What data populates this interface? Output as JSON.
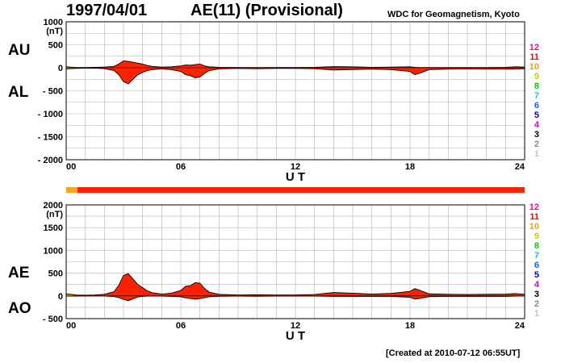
{
  "header": {
    "date": "1997/04/01",
    "title": "AE(11) (Provisional)",
    "source": "WDC for Geomagnetism, Kyoto"
  },
  "footer": {
    "created": "[Created at 2010-07-12 06:55UT]"
  },
  "colors": {
    "fill": "#ff2200",
    "fill_early": "#f5a623",
    "grid": "#b4b4b4",
    "station_count": [
      "#c0c0c0",
      "#888888",
      "#000000",
      "#cc00cc",
      "#0000cc",
      "#0066ff",
      "#00cccc",
      "#00cc00",
      "#cccc00",
      "#ff9900",
      "#ff0000",
      "#ff0099"
    ]
  },
  "station_counts": [
    "1",
    "2",
    "3",
    "4",
    "5",
    "6",
    "7",
    "8",
    "9",
    "10",
    "11",
    "12"
  ],
  "chart_data": [
    {
      "type": "area",
      "name": "AU-AL",
      "labels": {
        "upper": "AU",
        "lower": "AL"
      },
      "ylim": [
        -2000,
        1000
      ],
      "yticks": [
        "1000",
        "500",
        "0",
        "- 500",
        "- 1000",
        "- 1500",
        "- 2000"
      ],
      "yunit": "(nT)",
      "xlim": [
        0,
        24
      ],
      "xticks": [
        "00",
        "06",
        "12",
        "18",
        "24"
      ],
      "xlabel": "U T",
      "x": [
        0,
        0.5,
        1,
        1.5,
        2,
        2.5,
        2.75,
        3,
        3.25,
        3.5,
        3.75,
        4,
        4.25,
        4.5,
        5,
        5.5,
        6,
        6.25,
        6.5,
        6.75,
        7,
        7.25,
        7.5,
        8,
        9,
        10,
        11,
        12,
        13,
        14,
        15,
        16,
        17,
        18,
        18.25,
        18.5,
        19,
        20,
        21,
        22,
        23,
        23.5,
        24
      ],
      "series": [
        {
          "role": "upper",
          "values": [
            20,
            5,
            5,
            10,
            15,
            30,
            80,
            150,
            140,
            120,
            100,
            80,
            50,
            30,
            15,
            20,
            40,
            60,
            55,
            70,
            80,
            40,
            20,
            10,
            5,
            5,
            5,
            5,
            10,
            25,
            20,
            10,
            15,
            20,
            10,
            5,
            5,
            5,
            5,
            5,
            10,
            20,
            15
          ]
        },
        {
          "role": "lower",
          "values": [
            -25,
            -15,
            -10,
            -10,
            -20,
            -60,
            -150,
            -300,
            -350,
            -250,
            -150,
            -100,
            -60,
            -40,
            -25,
            -40,
            -80,
            -150,
            -170,
            -220,
            -200,
            -120,
            -60,
            -25,
            -15,
            -20,
            -15,
            -15,
            -20,
            -50,
            -40,
            -30,
            -40,
            -80,
            -150,
            -120,
            -40,
            -30,
            -25,
            -30,
            -30,
            -30,
            -20
          ]
        }
      ]
    },
    {
      "type": "area",
      "name": "AE-AO",
      "labels": {
        "upper": "AE",
        "lower": "AO"
      },
      "ylim": [
        -500,
        2000
      ],
      "yticks": [
        "2000",
        "1500",
        "1000",
        "500",
        "0",
        "- 500"
      ],
      "yunit": "(nT)",
      "xlim": [
        0,
        24
      ],
      "xticks": [
        "00",
        "06",
        "12",
        "18",
        "24"
      ],
      "xlabel": "U T",
      "x": [
        0,
        0.5,
        1,
        1.5,
        2,
        2.5,
        2.75,
        3,
        3.25,
        3.5,
        3.75,
        4,
        4.25,
        4.5,
        5,
        5.5,
        6,
        6.25,
        6.5,
        6.75,
        7,
        7.25,
        7.5,
        8,
        9,
        10,
        11,
        12,
        13,
        14,
        15,
        16,
        17,
        18,
        18.25,
        18.5,
        19,
        20,
        21,
        22,
        23,
        23.5,
        24
      ],
      "series": [
        {
          "role": "upper",
          "values": [
            45,
            20,
            15,
            20,
            35,
            90,
            230,
            450,
            490,
            370,
            250,
            180,
            110,
            70,
            40,
            60,
            120,
            210,
            225,
            290,
            280,
            160,
            80,
            35,
            20,
            25,
            20,
            20,
            30,
            75,
            60,
            40,
            55,
            100,
            160,
            125,
            45,
            35,
            30,
            35,
            40,
            50,
            35
          ]
        },
        {
          "role": "lower",
          "values": [
            -5,
            -5,
            -3,
            0,
            -3,
            -15,
            -35,
            -75,
            -105,
            -65,
            -25,
            -10,
            -5,
            -5,
            -5,
            -10,
            -20,
            -45,
            -58,
            -75,
            -60,
            -40,
            -20,
            -8,
            -5,
            -8,
            -5,
            -5,
            -5,
            -12,
            -10,
            -10,
            -12,
            -30,
            -70,
            -58,
            -18,
            -12,
            -10,
            -12,
            -10,
            -5,
            -2
          ]
        }
      ]
    }
  ]
}
